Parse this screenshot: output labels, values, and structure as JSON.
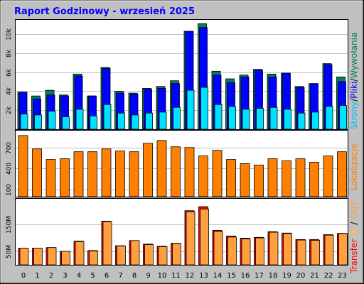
{
  "title": "Raport Godzinowy -  wrzesień 2025",
  "side_labels": {
    "top": [
      "Strony",
      "/",
      "Pliki",
      "/",
      "Wywołania"
    ],
    "middle": [
      "Lokalizacje"
    ],
    "bottom": [
      "Transfer",
      " IN",
      " / ",
      "OUT"
    ]
  },
  "colors": {
    "background": "#c0c0c0",
    "panel": "#ffffff",
    "title": "#0000ff",
    "hits": "#00805c",
    "files": "#0000ff",
    "pages": "#00e0ff",
    "visits": "#ff8000",
    "transfer_in": "#ff0000",
    "transfer_out": "#ffa040",
    "side_top": [
      "#00c0ff",
      "#000000",
      "#0000ff",
      "#000000",
      "#00805c"
    ],
    "side_middle": [
      "#ff8000"
    ],
    "side_bottom": [
      "#ff0000",
      "#ffc040",
      "#000000",
      "#ffa040"
    ]
  },
  "chart_data": [
    {
      "type": "bar",
      "categories": [
        "0",
        "1",
        "2",
        "3",
        "4",
        "5",
        "6",
        "7",
        "8",
        "9",
        "10",
        "11",
        "12",
        "13",
        "14",
        "15",
        "16",
        "17",
        "18",
        "19",
        "20",
        "21",
        "22",
        "23"
      ],
      "series": [
        {
          "name": "Wywołania",
          "values": [
            3900,
            3500,
            4100,
            3600,
            5800,
            3500,
            6500,
            4000,
            3800,
            4300,
            4500,
            5100,
            10300,
            11100,
            6100,
            5300,
            5700,
            6300,
            5800,
            5900,
            4500,
            4800,
            6900,
            5500
          ]
        },
        {
          "name": "Pliki",
          "values": [
            3900,
            3200,
            3600,
            3500,
            5600,
            3500,
            6400,
            3800,
            3700,
            4200,
            4300,
            4800,
            10300,
            10700,
            5700,
            4900,
            5500,
            6200,
            5500,
            5900,
            4400,
            4800,
            6800,
            5000
          ]
        },
        {
          "name": "Strony",
          "values": [
            1600,
            1500,
            1900,
            1300,
            2100,
            1400,
            2600,
            1700,
            1500,
            1700,
            1800,
            2300,
            4100,
            4400,
            2600,
            2400,
            2100,
            2200,
            2300,
            2100,
            1700,
            1800,
            2400,
            2500
          ]
        }
      ],
      "yticks": [
        2000,
        4000,
        6000,
        8000,
        10000
      ],
      "ytick_labels": [
        "2k",
        "4k",
        "6k",
        "8k",
        "10k"
      ],
      "ylim": [
        0,
        11500
      ]
    },
    {
      "type": "bar",
      "categories": [
        "0",
        "1",
        "2",
        "3",
        "4",
        "5",
        "6",
        "7",
        "8",
        "9",
        "10",
        "11",
        "12",
        "13",
        "14",
        "15",
        "16",
        "17",
        "18",
        "19",
        "20",
        "21",
        "22",
        "23"
      ],
      "series": [
        {
          "name": "Lokalizacje",
          "values": [
            870,
            680,
            530,
            540,
            640,
            640,
            680,
            650,
            640,
            760,
            800,
            710,
            700,
            580,
            660,
            530,
            470,
            450,
            540,
            510,
            540,
            490,
            580,
            640
          ]
        }
      ],
      "yticks": [
        100,
        400,
        700
      ],
      "ytick_labels": [
        "100",
        "400",
        "700"
      ],
      "ylim": [
        0,
        940
      ]
    },
    {
      "type": "bar",
      "categories": [
        "0",
        "1",
        "2",
        "3",
        "4",
        "5",
        "6",
        "7",
        "8",
        "9",
        "10",
        "11",
        "12",
        "13",
        "14",
        "15",
        "16",
        "17",
        "18",
        "19",
        "20",
        "21",
        "22",
        "23"
      ],
      "series": [
        {
          "name": "Transfer IN",
          "values": [
            62,
            62,
            64,
            50,
            88,
            53,
            162,
            71,
            90,
            77,
            69,
            80,
            201,
            216,
            128,
            107,
            99,
            102,
            123,
            118,
            94,
            94,
            112,
            117
          ]
        },
        {
          "name": "Transfer OUT",
          "values": [
            62,
            62,
            64,
            50,
            86,
            51,
            160,
            70,
            90,
            75,
            67,
            79,
            197,
            207,
            124,
            103,
            96,
            100,
            121,
            116,
            92,
            91,
            110,
            116
          ]
        }
      ],
      "yticks": [
        50,
        150
      ],
      "ytick_labels": [
        "50M",
        "150M"
      ],
      "ylim": [
        0,
        245
      ]
    }
  ]
}
